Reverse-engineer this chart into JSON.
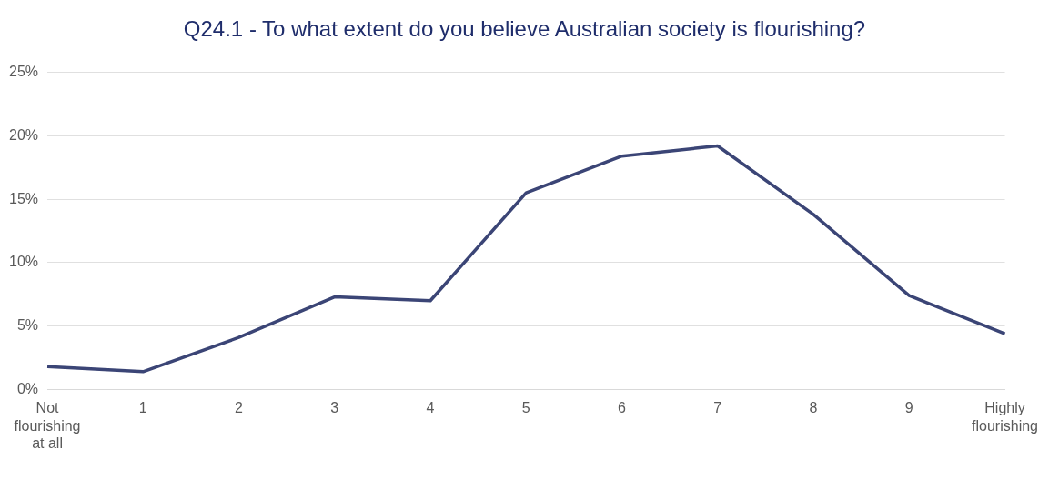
{
  "chart_data": {
    "type": "line",
    "title": "Q24.1 - To what extent do you believe Australian society is flourishing?",
    "categories": [
      "Not flourishing at all",
      "1",
      "2",
      "3",
      "4",
      "5",
      "6",
      "7",
      "8",
      "9",
      "Highly flourishing"
    ],
    "series": [
      {
        "color": "#3b4576",
        "values": [
          1.8,
          1.4,
          4.1,
          7.3,
          7.0,
          15.5,
          18.4,
          19.2,
          13.8,
          7.4,
          4.4
        ]
      }
    ],
    "ylim": [
      0,
      25
    ],
    "yticks": [
      {
        "value": 0,
        "label": "0%"
      },
      {
        "value": 5,
        "label": "5%"
      },
      {
        "value": 10,
        "label": "10%"
      },
      {
        "value": 15,
        "label": "15%"
      },
      {
        "value": 20,
        "label": "20%"
      },
      {
        "value": 25,
        "label": "25%"
      }
    ],
    "grid": "y",
    "legend": false,
    "marker": "none",
    "line_style": "solid"
  }
}
